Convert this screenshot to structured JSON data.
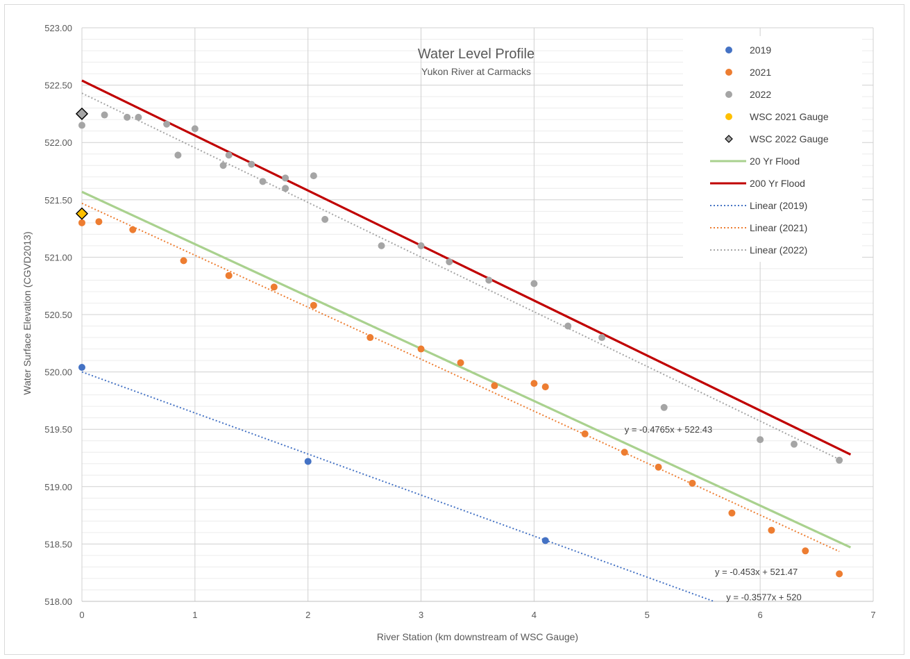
{
  "chart_data": {
    "type": "scatter",
    "title": "Water Level Profile",
    "subtitle": "Yukon River at Carmacks",
    "xlabel": "River Station (km downstream of WSC Gauge)",
    "ylabel": "Water Surface Elevation (CGVD2013)",
    "xlim": [
      0,
      7
    ],
    "ylim": [
      518.0,
      523.0
    ],
    "x_ticks": [
      "0",
      "1",
      "2",
      "3",
      "4",
      "5",
      "6",
      "7"
    ],
    "y_ticks": [
      "518.00",
      "518.50",
      "519.00",
      "519.50",
      "520.00",
      "520.50",
      "521.00",
      "521.50",
      "522.00",
      "522.50",
      "523.00"
    ],
    "grid": true,
    "legend_position": "top-right",
    "series": [
      {
        "name": "2019",
        "kind": "points",
        "color": "#4472c4",
        "x": [
          0,
          2.0,
          4.1
        ],
        "y": [
          520.04,
          519.22,
          518.53
        ]
      },
      {
        "name": "2021",
        "kind": "points",
        "color": "#ed7d31",
        "x": [
          0,
          0.15,
          0.45,
          0.9,
          1.3,
          1.7,
          2.05,
          2.55,
          3.0,
          3.35,
          3.65,
          4.0,
          4.1,
          4.45,
          4.8,
          5.1,
          5.4,
          5.75,
          6.1,
          6.4,
          6.7
        ],
        "y": [
          521.3,
          521.31,
          521.24,
          520.97,
          520.84,
          520.74,
          520.58,
          520.3,
          520.2,
          520.08,
          519.88,
          519.9,
          519.87,
          519.46,
          519.3,
          519.17,
          519.03,
          518.77,
          518.62,
          518.44,
          518.24
        ]
      },
      {
        "name": "2022",
        "kind": "points",
        "color": "#a5a5a5",
        "x": [
          0,
          0.2,
          0.4,
          0.5,
          0.75,
          0.85,
          1.0,
          1.25,
          1.3,
          1.5,
          1.6,
          1.8,
          1.8,
          2.05,
          2.15,
          2.65,
          3.0,
          3.25,
          3.6,
          4.0,
          4.3,
          4.6,
          5.15,
          6.0,
          6.3,
          6.7
        ],
        "y": [
          522.15,
          522.24,
          522.22,
          522.22,
          522.16,
          521.89,
          522.12,
          521.8,
          521.89,
          521.81,
          521.66,
          521.69,
          521.6,
          521.71,
          521.33,
          521.1,
          521.1,
          520.96,
          520.8,
          520.77,
          520.4,
          520.3,
          519.69,
          519.41,
          519.37,
          519.23
        ]
      },
      {
        "name": "WSC 2021 Gauge",
        "kind": "diamond",
        "color": "#ffc000",
        "x": [
          0
        ],
        "y": [
          521.38
        ]
      },
      {
        "name": "WSC 2022 Gauge",
        "kind": "diamond",
        "color": "#a5a5a5",
        "x": [
          0
        ],
        "y": [
          522.25
        ]
      },
      {
        "name": "20 Yr Flood",
        "kind": "line",
        "color": "#a9d18e",
        "x": [
          0,
          6.8
        ],
        "y": [
          521.57,
          518.47
        ]
      },
      {
        "name": "200 Yr Flood",
        "kind": "line",
        "color": "#c00000",
        "x": [
          0,
          6.8
        ],
        "y": [
          522.54,
          519.28
        ]
      },
      {
        "name": "Linear (2019)",
        "kind": "trend",
        "color": "#4472c4",
        "x": [
          0,
          5.59
        ],
        "y": [
          520.0,
          518.0
        ]
      },
      {
        "name": "Linear (2021)",
        "kind": "trend",
        "color": "#ed7d31",
        "x": [
          0,
          6.7
        ],
        "y": [
          521.47,
          518.435
        ]
      },
      {
        "name": "Linear (2022)",
        "kind": "trend",
        "color": "#a5a5a5",
        "x": [
          0,
          6.7
        ],
        "y": [
          522.43,
          519.238
        ]
      }
    ],
    "annotations": [
      {
        "text": "y = -0.4765x + 522.43",
        "at_x": 4.8,
        "at_y": 519.5
      },
      {
        "text": "y = -0.453x + 521.47",
        "at_x": 5.6,
        "at_y": 518.26
      },
      {
        "text": "y = -0.3577x + 520",
        "at_x": 5.7,
        "at_y": 518.04
      }
    ]
  }
}
